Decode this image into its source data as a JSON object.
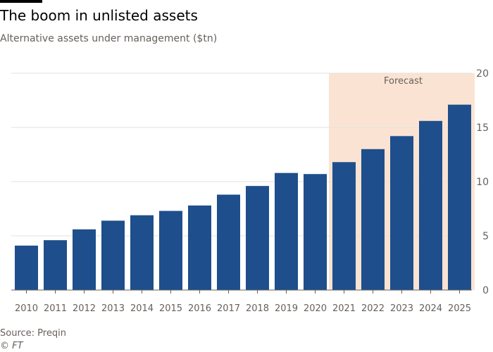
{
  "header": {
    "title": "The boom in unlisted assets",
    "subtitle": "Alternative assets under management ($tn)"
  },
  "footer": {
    "source": "Source: Preqin",
    "credit": "© FT"
  },
  "colors": {
    "bar": "#1e4f8c",
    "forecast_band": "#fbe3d3",
    "grid": "#e6e1dc",
    "axis": "#66605c",
    "text": "#66605c"
  },
  "chart_data": {
    "type": "bar",
    "categories": [
      "2010",
      "2011",
      "2012",
      "2013",
      "2014",
      "2015",
      "2016",
      "2017",
      "2018",
      "2019",
      "2020",
      "2021",
      "2022",
      "2023",
      "2024",
      "2025"
    ],
    "values": [
      4.1,
      4.6,
      5.6,
      6.4,
      6.9,
      7.3,
      7.8,
      8.8,
      9.6,
      10.8,
      10.7,
      11.8,
      13.0,
      14.2,
      15.6,
      17.1
    ],
    "ylim": [
      0,
      20
    ],
    "yticks": [
      0,
      5,
      10,
      15,
      20
    ],
    "y_axis_side": "right",
    "grid": true,
    "forecast": {
      "label": "Forecast",
      "from": "2021",
      "to": "2025"
    }
  }
}
